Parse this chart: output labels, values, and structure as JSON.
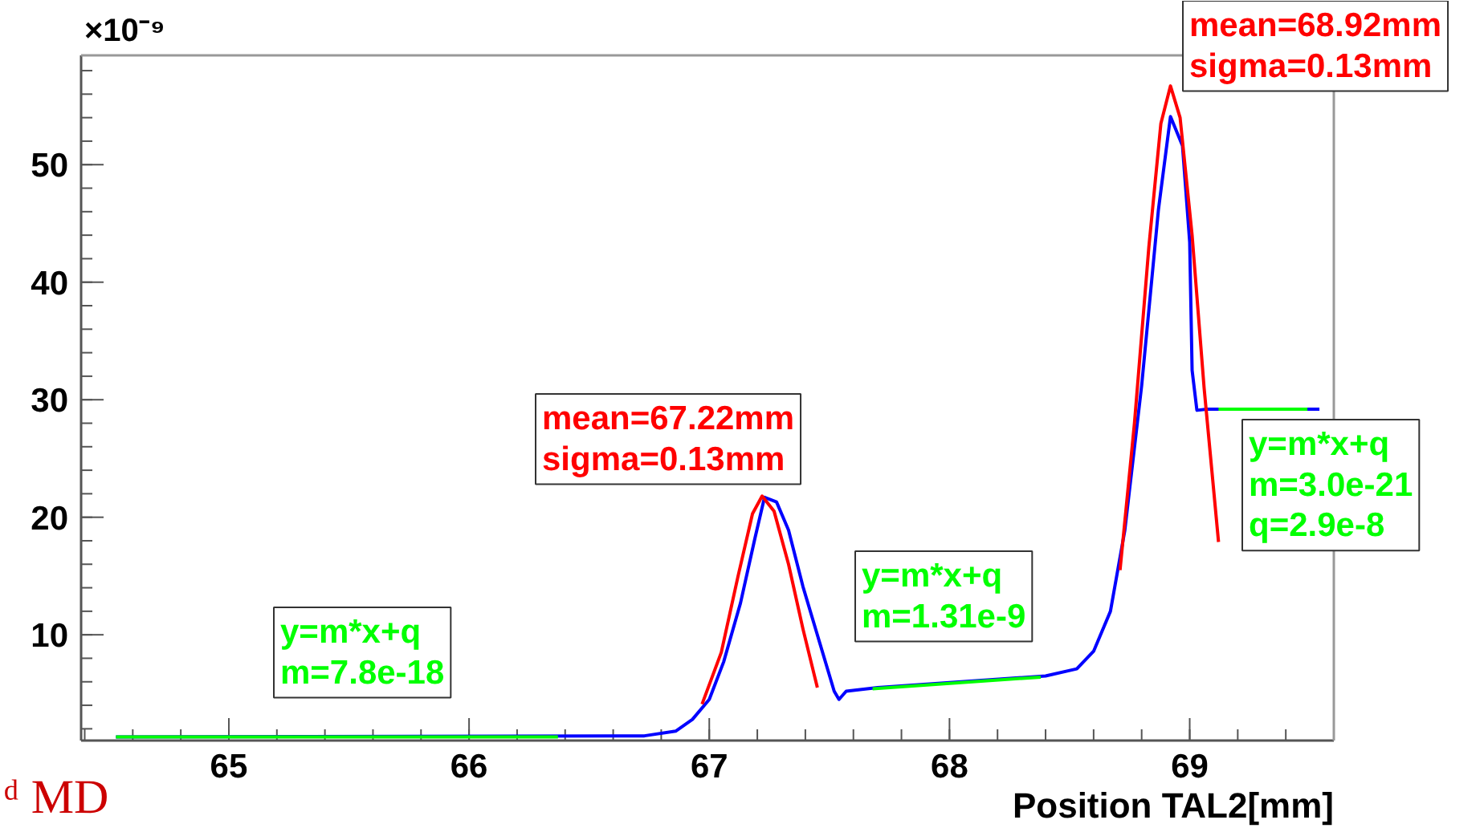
{
  "chart_data": {
    "type": "line",
    "xlabel": "Position TAL2[mm]",
    "xlim": [
      64.385,
      69.6
    ],
    "ylim": [
      1,
      59.3
    ],
    "xticks": [
      65,
      66,
      67,
      68,
      69
    ],
    "yticks": [
      10,
      20,
      30,
      40,
      50
    ],
    "grid": false,
    "marker": "none",
    "line_style": "solid",
    "series": [
      {
        "color": "#0000ff",
        "x": [
          64.53,
          66.73,
          66.86,
          66.93,
          67.0,
          67.06,
          67.13,
          67.19,
          67.23,
          67.28,
          67.33,
          67.39,
          67.46,
          67.52,
          67.54,
          67.57,
          67.7,
          68.4,
          68.53,
          68.6,
          68.67,
          68.73,
          68.8,
          68.87,
          68.92,
          68.97,
          69.0,
          69.01,
          69.03,
          69.07,
          69.54
        ],
        "values": [
          1.3,
          1.4,
          1.8,
          2.8,
          4.5,
          7.7,
          12.7,
          18.2,
          21.7,
          21.3,
          18.9,
          14.1,
          9.3,
          5.2,
          4.5,
          5.2,
          5.5,
          6.5,
          7.1,
          8.6,
          12,
          18.9,
          31.2,
          46.2,
          54.1,
          51.6,
          43.4,
          32.5,
          29.1,
          29.2,
          29.2
        ]
      },
      {
        "color": "#ff0000",
        "x": [
          66.97,
          67.05,
          67.12,
          67.18,
          67.22,
          67.27,
          67.33,
          67.39,
          67.45
        ],
        "values": [
          4.1,
          8.5,
          15,
          20.3,
          21.8,
          20.5,
          16,
          10.5,
          5.5
        ]
      },
      {
        "color": "#ff0000",
        "x": [
          68.71,
          68.77,
          68.83,
          68.88,
          68.92,
          68.96,
          69.01,
          69.06,
          69.12
        ],
        "values": [
          15.5,
          28,
          43,
          53.5,
          56.7,
          54,
          44,
          31,
          17.9
        ]
      },
      {
        "color": "#00ff00",
        "x": [
          64.53,
          66.37
        ],
        "values": [
          1.3,
          1.3
        ]
      },
      {
        "color": "#00ff00",
        "x": [
          67.68,
          68.38
        ],
        "values": [
          5.4,
          6.4
        ]
      },
      {
        "color": "#00ff00",
        "x": [
          69.12,
          69.49
        ],
        "values": [
          29.2,
          29.2
        ]
      }
    ],
    "annotations": [
      "×10⁻⁹",
      "mean=67.22mm\nsigma=0.13mm",
      "mean=68.92mm\nsigma=0.13mm",
      "y=m*x+q\nm=7.8e-18",
      "y=m*x+q\nm=1.31e-9",
      "y=m*x+q\nm=3.0e-21\nq=2.9e-8",
      "ᵈ MD"
    ]
  }
}
